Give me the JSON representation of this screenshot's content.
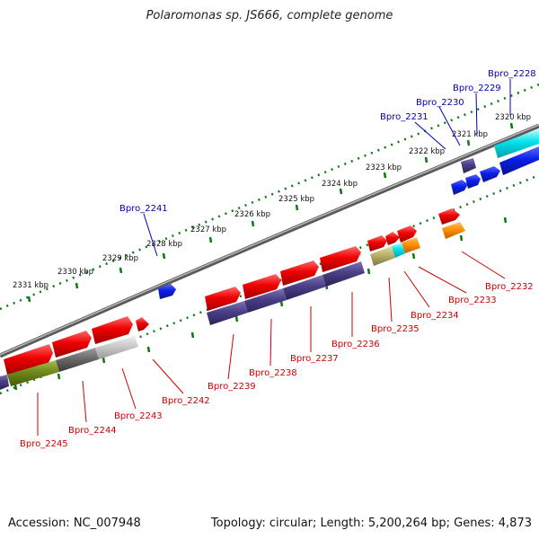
{
  "title": "Polaromonas sp. JS666, complete genome",
  "footer": {
    "accession": "Accession: NC_007948",
    "summary": "Topology: circular; Length: 5,200,264 bp; Genes: 4,873"
  },
  "scale_labels": [
    "2331 kbp",
    "2330 kbp",
    "2329 kbp",
    "2328 kbp",
    "2327 kbp",
    "2326 kbp",
    "2325 kbp",
    "2324 kbp",
    "2323 kbp",
    "2322 kbp",
    "2321 kbp",
    "2320 kbp"
  ],
  "top_gene_labels": [
    "Bpro_2241",
    "Bpro_2231",
    "Bpro_2230",
    "Bpro_2229",
    "Bpro_2228"
  ],
  "bottom_gene_labels": [
    "Bpro_2245",
    "Bpro_2244",
    "Bpro_2243",
    "Bpro_2242",
    "Bpro_2239",
    "Bpro_2238",
    "Bpro_2237",
    "Bpro_2236",
    "Bpro_2235",
    "Bpro_2234",
    "Bpro_2233",
    "Bpro_2232"
  ],
  "colors": {
    "red": "#ee0000",
    "purple": "#4a3f86",
    "blue": "#0a1ee6",
    "cyan": "#00e0e8",
    "orange": "#ff9000",
    "olive": "#6f8a1a",
    "gray": "#6a6a6a",
    "light_gray": "#c8c8c8",
    "khaki": "#b9b26a",
    "backbone": "#7a7a7a",
    "tick": "#117711"
  }
}
